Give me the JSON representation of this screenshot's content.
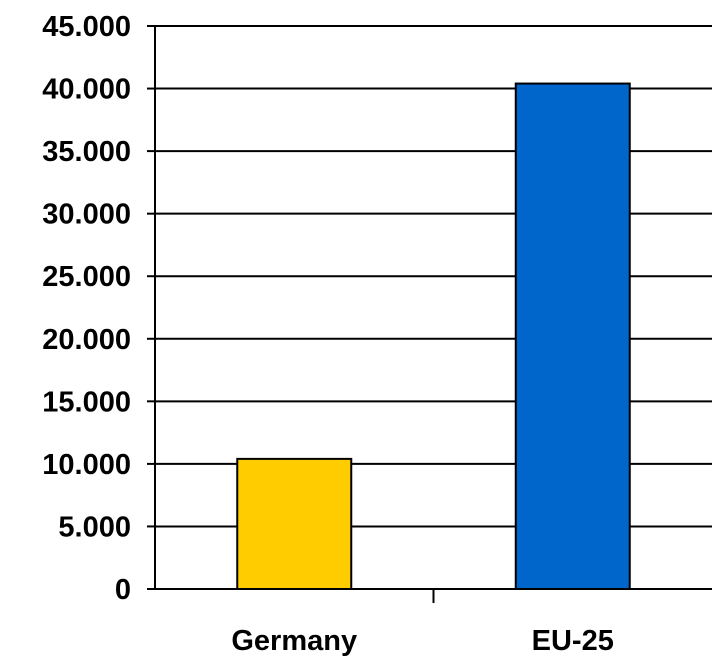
{
  "chart_data": {
    "type": "bar",
    "categories": [
      "Germany",
      "EU-25"
    ],
    "values": [
      10400,
      40400
    ],
    "colors": [
      "#FFCC00",
      "#0066CC"
    ],
    "ylim": [
      0,
      45000
    ],
    "yticks": [
      0,
      5000,
      10000,
      15000,
      20000,
      25000,
      30000,
      35000,
      40000,
      45000
    ],
    "ytick_labels": [
      "0",
      "5.000",
      "10.000",
      "15.000",
      "20.000",
      "25.000",
      "30.000",
      "35.000",
      "40.000",
      "45.000"
    ],
    "grid": true,
    "legend": "none"
  }
}
